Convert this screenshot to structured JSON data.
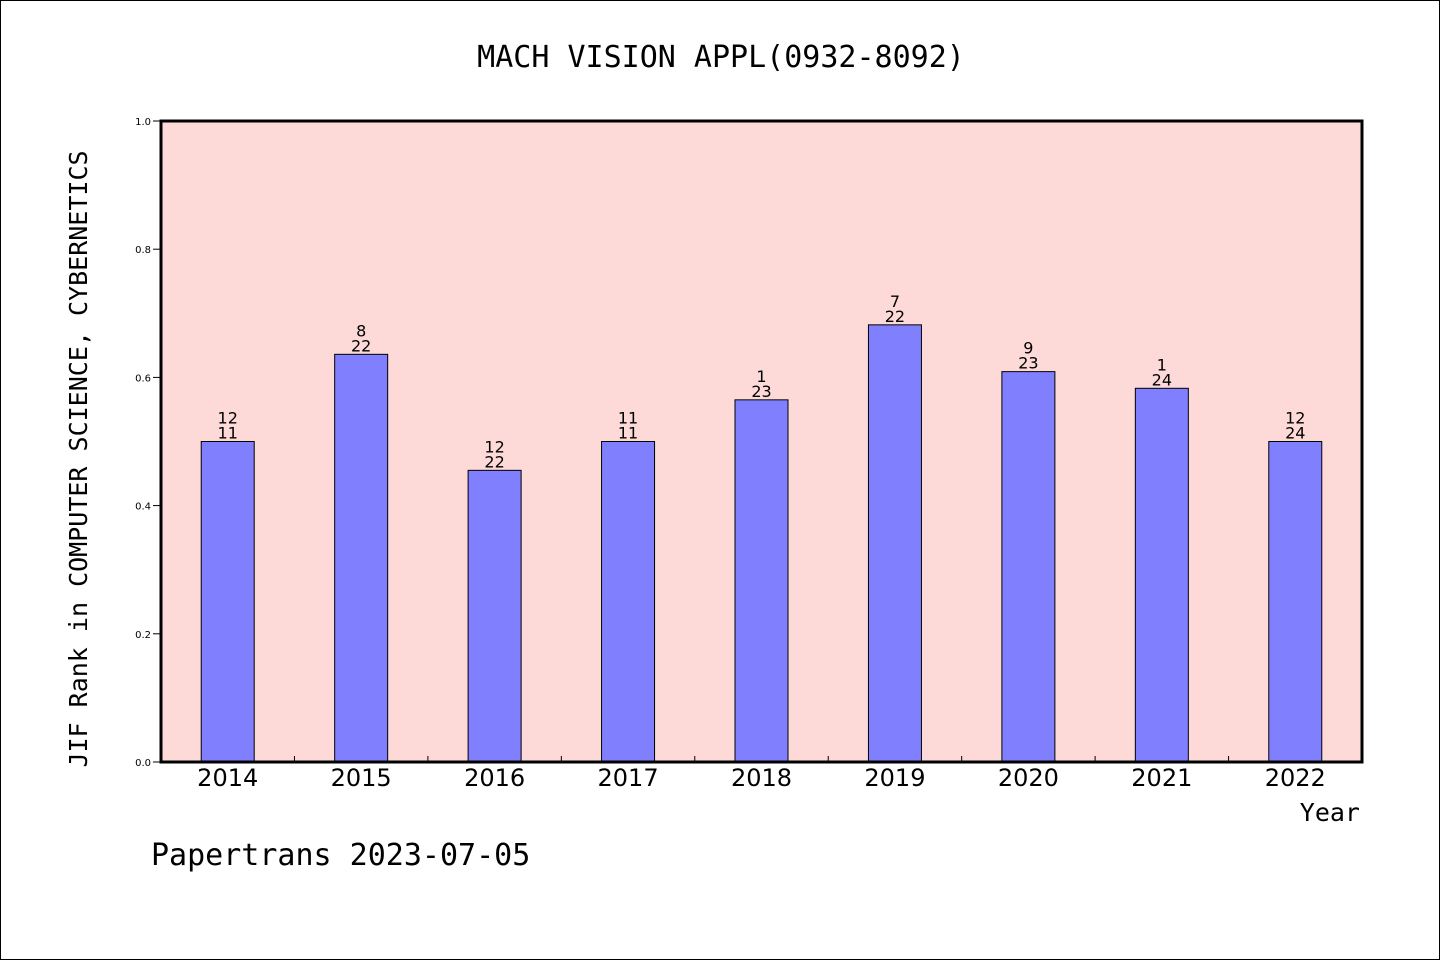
{
  "chart_data": {
    "type": "bar",
    "title": "MACH VISION APPL(0932-8092)",
    "xlabel": "Year",
    "ylabel": "JIF Rank in COMPUTER SCIENCE, CYBERNETICS",
    "ylim": [
      0,
      1.0
    ],
    "yticks": [
      "0.0",
      "0.2",
      "0.4",
      "0.6",
      "0.8",
      "1.0"
    ],
    "categories": [
      "2014",
      "2015",
      "2016",
      "2017",
      "2018",
      "2019",
      "2020",
      "2021",
      "2022"
    ],
    "values": [
      0.5,
      0.636,
      0.455,
      0.5,
      0.565,
      0.682,
      0.609,
      0.583,
      0.5
    ],
    "labels_top": [
      "12",
      "8",
      "12",
      "11",
      "1",
      "7",
      "9",
      "1",
      "12"
    ],
    "labels_bottom": [
      "11",
      "22",
      "22",
      "11",
      "23",
      "22",
      "23",
      "24",
      "24"
    ],
    "colors": {
      "plot_bg": "#fddad7",
      "bar": "#8080ff",
      "bar_edge": "#000000"
    },
    "grid": false
  },
  "footer": {
    "text": "Papertrans 2023-07-05"
  }
}
